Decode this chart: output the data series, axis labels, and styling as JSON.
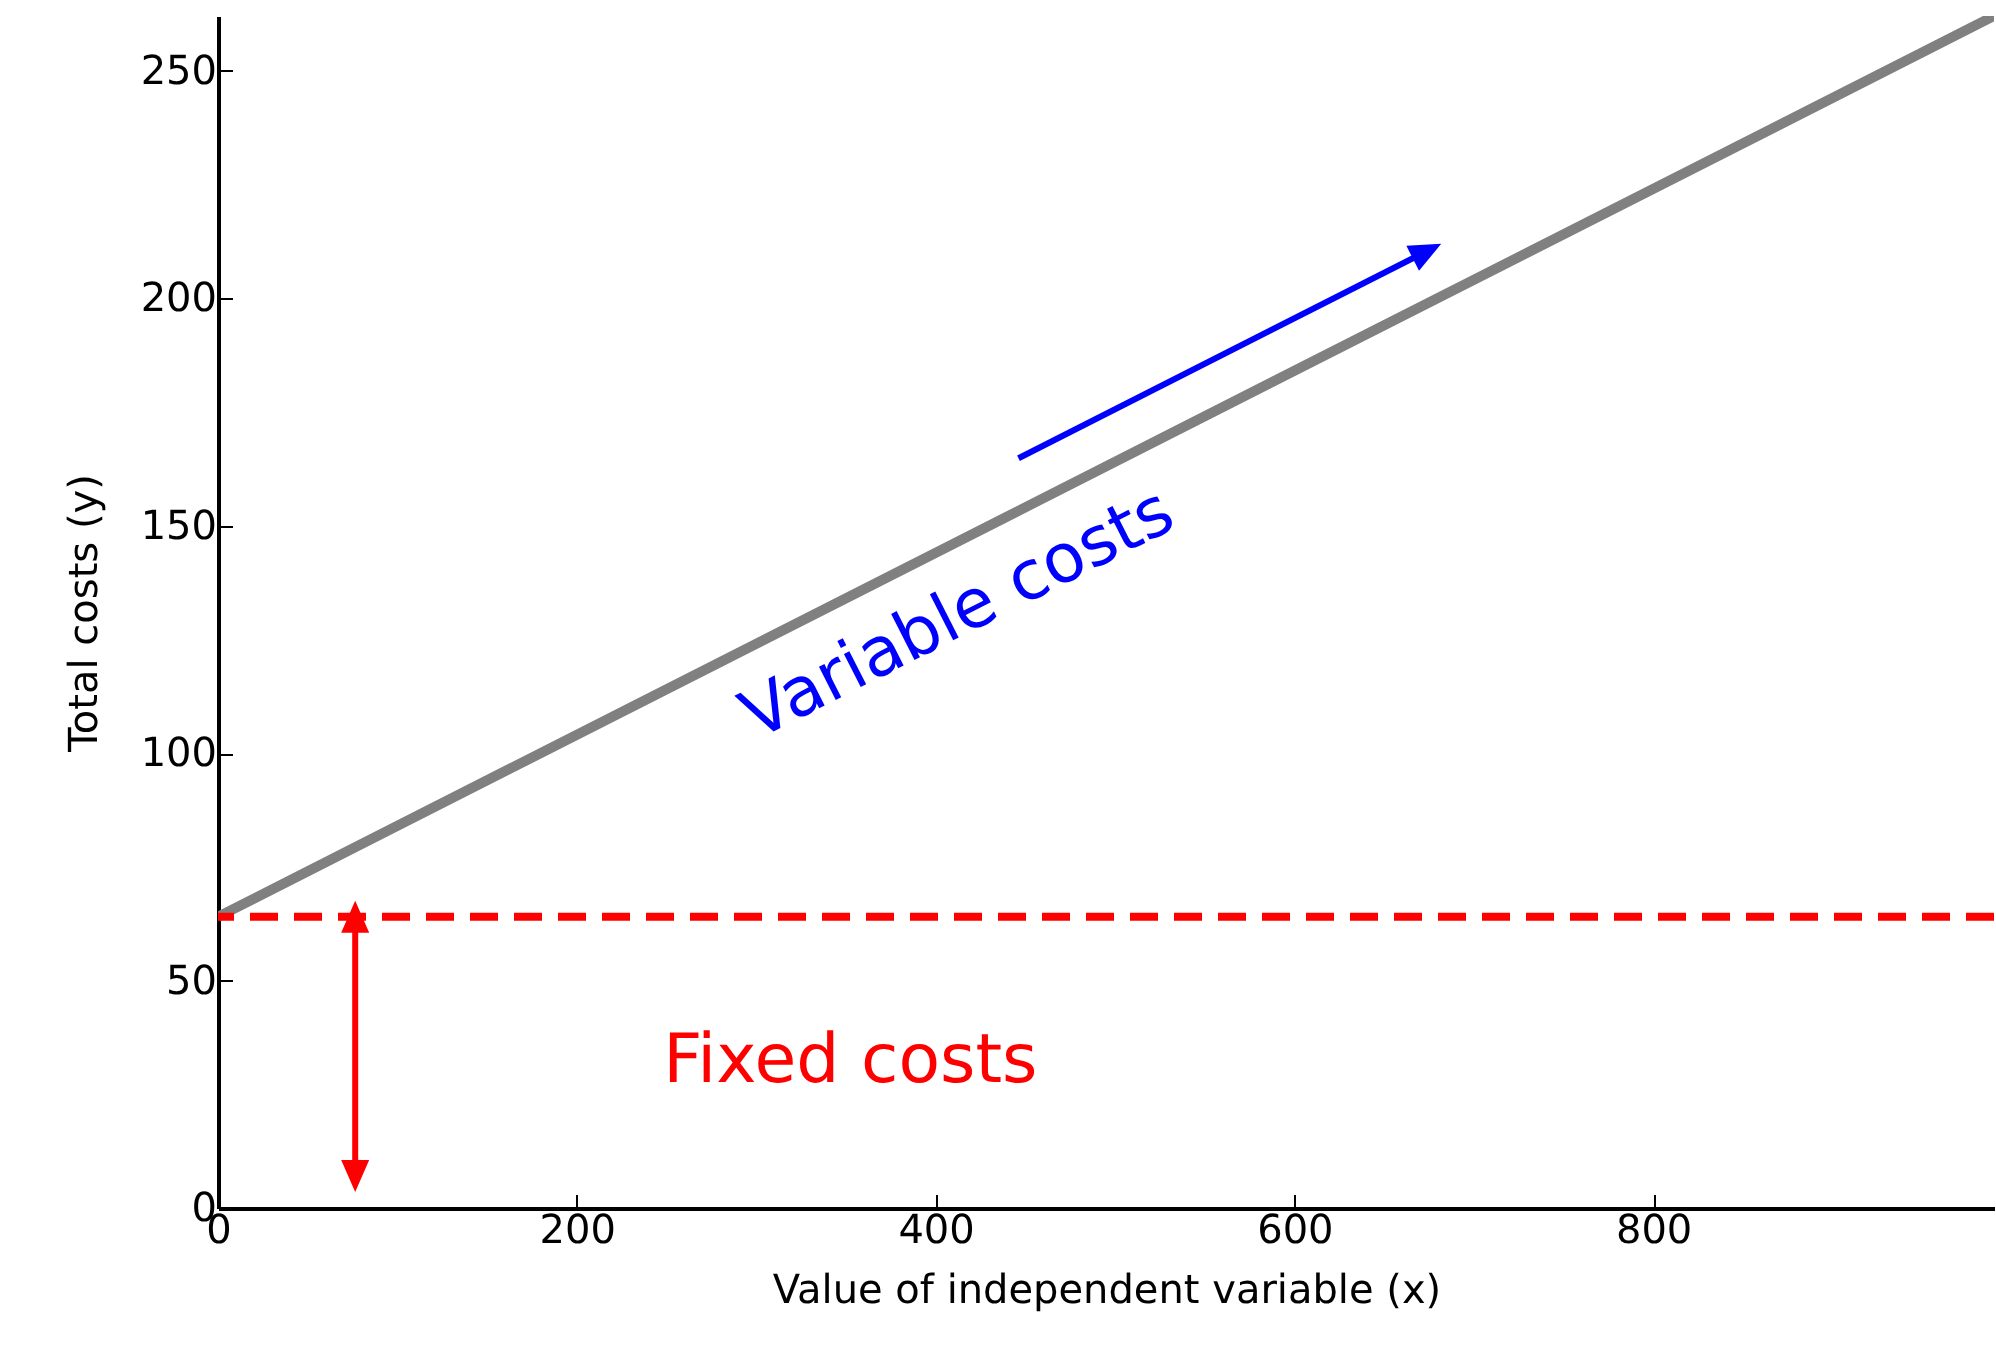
{
  "chart_data": {
    "type": "line",
    "xlabel": "Value of independent variable (x)",
    "ylabel": "Total costs (y)",
    "x": [
      0,
      990
    ],
    "series": [
      {
        "color": "#808080",
        "values": [
          64,
          262
        ]
      }
    ],
    "xlim": [
      0,
      990
    ],
    "ylim": [
      0,
      262
    ],
    "xticks": [
      0,
      200,
      400,
      600,
      800
    ],
    "yticks": [
      0,
      50,
      100,
      150,
      200,
      250
    ],
    "ref_lines": [
      {
        "axis": "y",
        "value": 64,
        "label": "Fixed costs",
        "color": "#ff0000",
        "line_style": "dashed"
      }
    ],
    "annotations": [
      "Variable costs"
    ],
    "grid": false
  }
}
